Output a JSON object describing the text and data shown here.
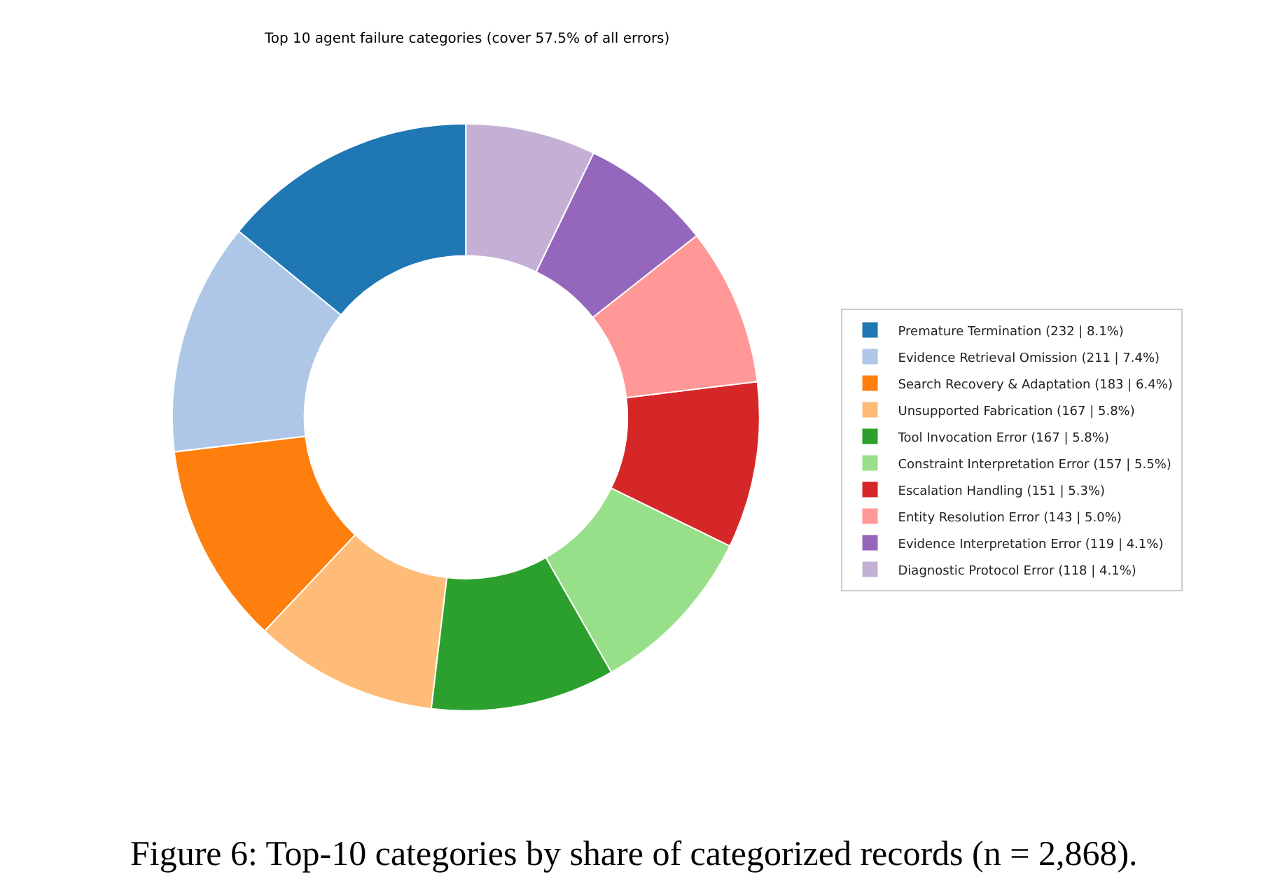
{
  "chart_data": {
    "type": "donut",
    "title": "Top 10 agent failure categories (cover 57.5% of all errors)",
    "categories": [
      "Premature Termination (232 | 8.1%)",
      "Evidence Retrieval Omission (211 | 7.4%)",
      "Search Recovery & Adaptation (183 | 6.4%)",
      "Unsupported Fabrication (167 | 5.8%)",
      "Tool Invocation Error (167 | 5.8%)",
      "Constraint Interpretation Error (157 | 5.5%)",
      "Escalation Handling (151 | 5.3%)",
      "Entity Resolution Error (143 | 5.0%)",
      "Evidence Interpretation Error (119 | 4.1%)",
      "Diagnostic Protocol Error (118 | 4.1%)"
    ],
    "values": [
      232,
      211,
      183,
      167,
      167,
      157,
      151,
      143,
      119,
      118
    ],
    "colors": [
      "#1f77b4",
      "#aec7e8",
      "#ff7f0e",
      "#ffbb78",
      "#2ca02c",
      "#98df8a",
      "#d62728",
      "#ff9896",
      "#9467bd",
      "#c5b0d5"
    ],
    "legend": "right",
    "annotations": [
      "Figure 6: Top-10 categories by share of categorized records (n = 2,868)."
    ]
  }
}
